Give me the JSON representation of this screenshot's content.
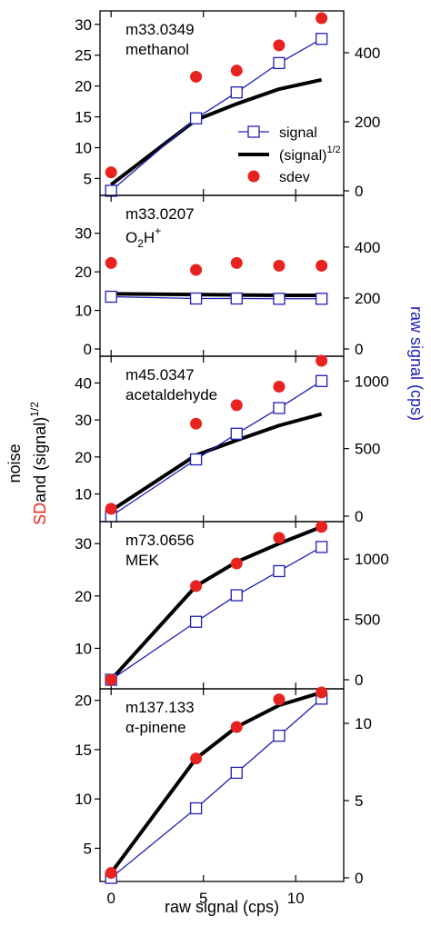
{
  "chart_data": {
    "type": "scatter",
    "shared_x": {
      "label": "raw signal (cps)",
      "range": [
        -0.6,
        12.6
      ],
      "ticks": [
        0,
        5,
        10
      ]
    },
    "left_axis_label": {
      "line1": "noise",
      "line2_sd": "SD",
      "line2_rest": "and (signal)",
      "line2_sup": "1/2"
    },
    "right_axis_label": "raw signal (cps)",
    "legend": {
      "signal": "signal",
      "sqrt": "(signal)",
      "sqrt_sup": "1/2",
      "sdev": "sdev"
    },
    "colors": {
      "signal": "#1f1fb4",
      "sqrt": "#000000",
      "sdev": "#e8231f",
      "sd_label": "#e8231f",
      "right_label": "#1f1fb4"
    },
    "panels": [
      {
        "name_line1": "m33.0349",
        "name_line2": "methanol",
        "left_ylim": [
          3,
          31
        ],
        "left_ticks": [
          5,
          10,
          15,
          20,
          25,
          30
        ],
        "right_ylim": [
          0,
          500
        ],
        "right_ticks": [
          0,
          200,
          400
        ],
        "show_legend": true,
        "signal": {
          "x": [
            0,
            4.6,
            6.8,
            9.1,
            11.4
          ],
          "y": [
            0,
            210,
            285,
            370,
            440
          ]
        },
        "sqrt": {
          "x": [
            0,
            4.6,
            6.8,
            9.1,
            11.4
          ],
          "y": [
            4,
            14.5,
            17.1,
            19.5,
            21.0
          ]
        },
        "sdev": {
          "x": [
            0,
            4.6,
            6.8,
            9.1,
            11.4
          ],
          "y": [
            6,
            21.5,
            22.5,
            26.6,
            31
          ]
        }
      },
      {
        "name_line1": "m33.0207",
        "name_line2_main": "O",
        "name_line2_sub": "2",
        "name_line2_mid": "H",
        "name_line2_sup": "+",
        "left_ylim": [
          0,
          37
        ],
        "left_ticks": [
          0,
          10,
          20,
          30
        ],
        "right_ylim": [
          0,
          560
        ],
        "right_ticks": [
          0,
          200,
          400
        ],
        "show_legend": false,
        "signal": {
          "x": [
            0,
            4.6,
            6.8,
            9.1,
            11.4
          ],
          "y": [
            205,
            198,
            198,
            197,
            197
          ]
        },
        "sqrt": {
          "x": [
            0,
            4.6,
            6.8,
            9.1,
            11.4
          ],
          "y": [
            14.3,
            14.1,
            14.0,
            13.9,
            13.9
          ]
        },
        "sdev": {
          "x": [
            0,
            4.6,
            6.8,
            9.1,
            11.4
          ],
          "y": [
            22.3,
            20.5,
            22.3,
            21.6,
            21.6
          ]
        }
      },
      {
        "name_line1": "m45.0347",
        "name_line2": "acetaldehyde",
        "left_ylim": [
          4,
          46
        ],
        "left_ticks": [
          10,
          20,
          30,
          40
        ],
        "right_ylim": [
          0,
          1150
        ],
        "right_ticks": [
          0,
          500,
          1000
        ],
        "show_legend": false,
        "signal": {
          "x": [
            0,
            4.6,
            6.8,
            9.1,
            11.4
          ],
          "y": [
            0,
            420,
            610,
            800,
            1000
          ]
        },
        "sqrt": {
          "x": [
            0,
            4.6,
            6.8,
            9.1,
            11.4
          ],
          "y": [
            5.5,
            20.5,
            24.5,
            28.5,
            31.6
          ]
        },
        "sdev": {
          "x": [
            0,
            4.6,
            6.8,
            9.1,
            11.4
          ],
          "y": [
            6,
            29,
            34,
            39,
            46
          ]
        }
      },
      {
        "name_line1": "m73.0656",
        "name_line2": "MEK",
        "left_ylim": [
          4,
          33.5
        ],
        "left_ticks": [
          10,
          20,
          30
        ],
        "right_ylim": [
          0,
          1280
        ],
        "right_ticks": [
          0,
          500,
          1000
        ],
        "show_legend": false,
        "signal": {
          "x": [
            0,
            4.6,
            6.8,
            9.1,
            11.4
          ],
          "y": [
            0,
            480,
            700,
            900,
            1100
          ]
        },
        "sqrt": {
          "x": [
            0,
            4.6,
            6.8,
            9.1,
            11.4
          ],
          "y": [
            4,
            21.9,
            26.5,
            30.0,
            33.2
          ]
        },
        "sdev": {
          "x": [
            0,
            4.6,
            6.8,
            9.1,
            11.4
          ],
          "y": [
            4,
            21.9,
            26.2,
            31.1,
            33.2
          ]
        }
      },
      {
        "name_line1": "m137.133",
        "name_line2": "α-pinene",
        "left_ylim": [
          2,
          20.8
        ],
        "left_ticks": [
          5,
          10,
          15,
          20
        ],
        "right_ylim": [
          0,
          12
        ],
        "right_ticks": [
          0,
          5,
          10
        ],
        "show_legend": false,
        "signal": {
          "x": [
            0,
            4.6,
            6.8,
            9.1,
            11.4
          ],
          "y": [
            0,
            4.5,
            6.8,
            9.2,
            11.6
          ]
        },
        "sqrt": {
          "x": [
            0,
            4.6,
            6.8,
            9.1,
            11.4
          ],
          "y": [
            2.5,
            14.1,
            17.3,
            19.5,
            20.8
          ]
        },
        "sdev": {
          "x": [
            0,
            4.6,
            6.8,
            9.1,
            11.4
          ],
          "y": [
            2.5,
            14.1,
            17.3,
            20.1,
            20.8
          ]
        }
      }
    ]
  }
}
